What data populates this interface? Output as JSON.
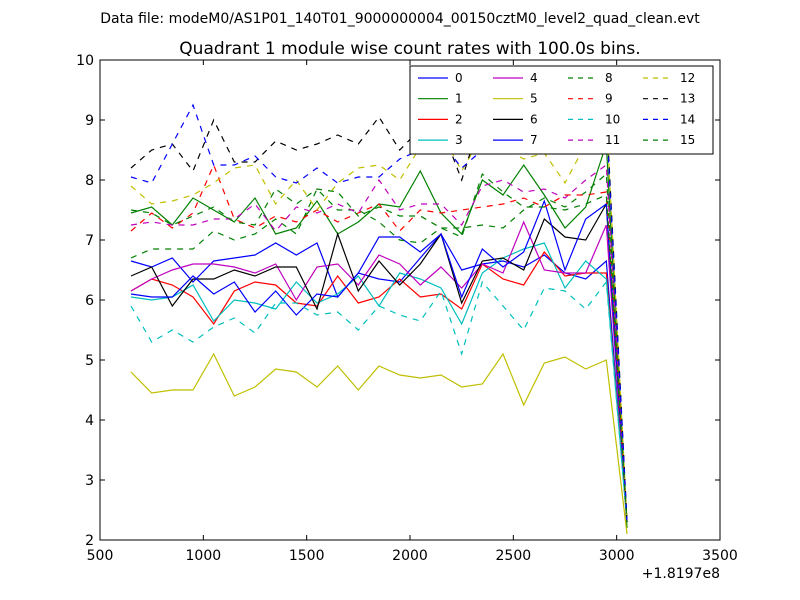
{
  "chart_data": {
    "type": "line",
    "suptitle": "Data file: modeM0/AS1P01_140T01_9000000004_00150cztM0_level2_quad_clean.evt",
    "title": "Quadrant 1 module wise count rates with 100.0s bins.",
    "xlabel": "",
    "ylabel": "",
    "xlim": [
      500,
      3500
    ],
    "ylim": [
      2,
      10
    ],
    "xticks": [
      500,
      1000,
      1500,
      2000,
      2500,
      3000,
      3500
    ],
    "yticks": [
      2,
      3,
      4,
      5,
      6,
      7,
      8,
      9,
      10
    ],
    "xtick_labels": [
      "500",
      "1000",
      "1500",
      "2000",
      "2500",
      "3000",
      "3500"
    ],
    "ytick_labels": [
      "2",
      "3",
      "4",
      "5",
      "6",
      "7",
      "8",
      "9",
      "10"
    ],
    "x_offset_label": "+1.8197e8",
    "legend_position": "top-right",
    "legend_columns": 4,
    "x": [
      650,
      750,
      850,
      950,
      1050,
      1150,
      1250,
      1350,
      1450,
      1550,
      1650,
      1750,
      1850,
      1950,
      2050,
      2150,
      2250,
      2350,
      2450,
      2550,
      2650,
      2750,
      2850,
      2950,
      3050
    ],
    "series": [
      {
        "name": "0",
        "color": "#0000ff",
        "dash": "solid",
        "values": [
          6.65,
          6.55,
          6.7,
          6.3,
          6.65,
          6.7,
          6.75,
          6.95,
          6.75,
          6.95,
          6.05,
          6.45,
          6.35,
          6.3,
          6.7,
          7.1,
          6.5,
          6.6,
          6.65,
          6.55,
          6.75,
          6.45,
          6.35,
          6.65,
          2.3
        ]
      },
      {
        "name": "1",
        "color": "#008000",
        "dash": "solid",
        "values": [
          7.45,
          7.55,
          7.25,
          7.7,
          7.5,
          7.3,
          7.7,
          7.1,
          7.2,
          7.65,
          7.1,
          7.3,
          7.6,
          7.55,
          8.15,
          7.45,
          7.1,
          8.0,
          7.75,
          8.25,
          7.75,
          7.2,
          7.55,
          8.6,
          2.2
        ]
      },
      {
        "name": "2",
        "color": "#ff0000",
        "dash": "solid",
        "values": [
          6.15,
          6.35,
          6.25,
          6.05,
          5.6,
          6.15,
          6.3,
          6.25,
          5.95,
          5.9,
          6.4,
          5.95,
          6.05,
          6.35,
          6.05,
          6.1,
          5.85,
          6.6,
          6.35,
          6.25,
          6.8,
          6.4,
          6.45,
          6.45,
          2.3
        ]
      },
      {
        "name": "3",
        "color": "#00bfbf",
        "dash": "solid",
        "values": [
          6.05,
          6.0,
          6.05,
          6.25,
          5.65,
          6.0,
          5.95,
          5.85,
          6.3,
          5.95,
          6.1,
          6.4,
          5.9,
          6.45,
          6.35,
          6.2,
          5.6,
          6.45,
          6.7,
          6.85,
          6.95,
          6.2,
          6.65,
          6.35,
          2.3
        ]
      },
      {
        "name": "4",
        "color": "#bf00bf",
        "dash": "solid",
        "values": [
          6.15,
          6.35,
          6.5,
          6.6,
          6.6,
          6.55,
          6.45,
          6.6,
          6.0,
          6.55,
          6.6,
          6.25,
          6.75,
          6.6,
          6.25,
          6.55,
          6.2,
          6.6,
          6.45,
          7.3,
          6.5,
          6.45,
          6.45,
          7.25,
          2.3
        ]
      },
      {
        "name": "5",
        "color": "#bfbf00",
        "dash": "solid",
        "values": [
          4.8,
          4.45,
          4.5,
          4.5,
          5.1,
          4.4,
          4.55,
          4.85,
          4.8,
          4.55,
          4.9,
          4.5,
          4.9,
          4.75,
          4.7,
          4.75,
          4.55,
          4.6,
          5.1,
          4.25,
          4.95,
          5.05,
          4.85,
          5.0,
          2.1
        ]
      },
      {
        "name": "6",
        "color": "#000000",
        "dash": "solid",
        "values": [
          6.4,
          6.55,
          5.9,
          6.35,
          6.35,
          6.5,
          6.4,
          6.55,
          6.55,
          5.85,
          7.1,
          6.15,
          6.65,
          6.25,
          6.6,
          7.1,
          5.95,
          6.65,
          6.7,
          6.5,
          7.35,
          7.05,
          7.0,
          7.6,
          2.3
        ]
      },
      {
        "name": "7",
        "color": "#0000ff",
        "dash": "solid",
        "values": [
          6.1,
          6.05,
          6.05,
          6.4,
          6.1,
          6.3,
          5.8,
          6.15,
          5.75,
          6.1,
          6.05,
          6.45,
          7.05,
          7.05,
          6.8,
          7.1,
          6.05,
          6.85,
          6.55,
          6.8,
          7.65,
          6.5,
          7.35,
          7.6,
          2.3
        ]
      },
      {
        "name": "8",
        "color": "#008000",
        "dash": "dashed",
        "values": [
          6.7,
          6.85,
          6.85,
          6.85,
          7.15,
          7.0,
          7.1,
          7.35,
          7.1,
          7.85,
          7.5,
          7.5,
          7.3,
          7.0,
          6.95,
          7.2,
          7.2,
          7.25,
          7.2,
          7.5,
          7.7,
          7.55,
          7.8,
          8.1,
          2.3
        ]
      },
      {
        "name": "9",
        "color": "#ff0000",
        "dash": "dashed",
        "values": [
          7.15,
          7.45,
          7.2,
          7.45,
          8.25,
          7.35,
          7.2,
          7.4,
          7.3,
          7.5,
          7.3,
          7.45,
          7.6,
          7.15,
          7.5,
          7.45,
          7.5,
          7.55,
          7.6,
          7.7,
          7.55,
          7.75,
          7.75,
          7.8,
          2.3
        ]
      },
      {
        "name": "10",
        "color": "#00bfbf",
        "dash": "dashed",
        "values": [
          5.9,
          5.3,
          5.5,
          5.3,
          5.55,
          5.7,
          5.45,
          5.95,
          5.95,
          5.75,
          5.8,
          5.5,
          5.9,
          5.75,
          5.65,
          6.15,
          5.1,
          6.3,
          5.9,
          5.5,
          6.2,
          6.15,
          5.85,
          6.3,
          2.3
        ]
      },
      {
        "name": "11",
        "color": "#bf00bf",
        "dash": "dashed",
        "values": [
          7.25,
          7.3,
          7.25,
          7.25,
          7.35,
          7.35,
          7.6,
          7.15,
          7.55,
          7.45,
          7.6,
          7.45,
          8.0,
          7.5,
          7.6,
          7.6,
          7.25,
          7.9,
          8.0,
          7.8,
          7.85,
          7.7,
          8.0,
          8.25,
          2.3
        ]
      },
      {
        "name": "12",
        "color": "#bfbf00",
        "dash": "dashed",
        "values": [
          7.9,
          7.6,
          7.65,
          7.75,
          7.95,
          8.2,
          8.25,
          7.6,
          8.0,
          7.5,
          7.95,
          8.2,
          8.25,
          8.0,
          8.55,
          8.8,
          8.15,
          8.75,
          8.55,
          8.35,
          8.45,
          7.95,
          8.6,
          9.1,
          2.3
        ]
      },
      {
        "name": "13",
        "color": "#000000",
        "dash": "dashed",
        "values": [
          8.2,
          8.5,
          8.6,
          8.15,
          9.0,
          8.3,
          8.3,
          8.65,
          8.5,
          8.6,
          8.75,
          8.6,
          9.05,
          8.5,
          8.85,
          8.9,
          8.0,
          9.1,
          9.0,
          8.9,
          9.1,
          8.95,
          9.0,
          9.2,
          2.3
        ]
      },
      {
        "name": "14",
        "color": "#0000ff",
        "dash": "dashed",
        "values": [
          8.05,
          7.95,
          8.6,
          9.25,
          8.25,
          8.25,
          8.4,
          8.05,
          7.95,
          8.2,
          7.95,
          8.05,
          8.05,
          8.35,
          8.5,
          8.65,
          8.2,
          8.5,
          8.65,
          8.6,
          8.65,
          8.7,
          8.65,
          9.05,
          2.3
        ]
      },
      {
        "name": "15",
        "color": "#008000",
        "dash": "dashed",
        "values": [
          7.5,
          7.45,
          7.25,
          7.4,
          7.55,
          7.3,
          7.25,
          7.85,
          7.6,
          7.85,
          7.8,
          7.4,
          7.55,
          7.4,
          7.4,
          7.2,
          7.05,
          8.1,
          7.8,
          7.55,
          7.55,
          7.5,
          7.6,
          7.75,
          2.3
        ]
      }
    ]
  }
}
